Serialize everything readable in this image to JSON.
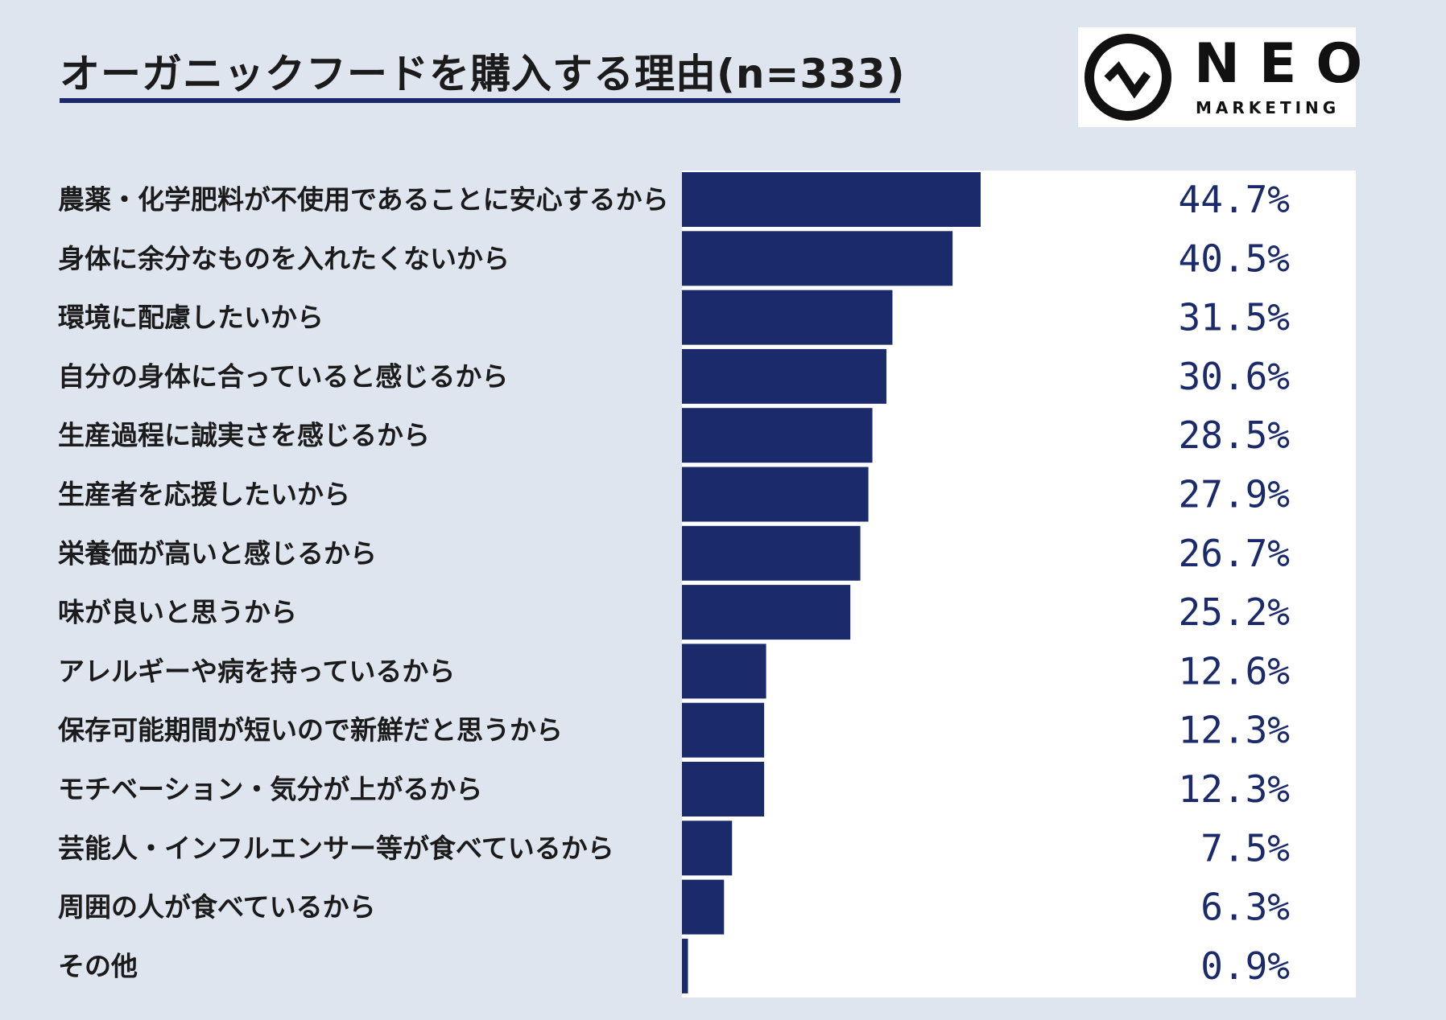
{
  "brand": {
    "name": "NEO",
    "sub": "MARKETING",
    "icon": "neo-circle-zigzag-icon"
  },
  "colors": {
    "background": "#dfe5ef",
    "bar": "#1b2a6b",
    "panel": "#ffffff",
    "value_text": "#1b2a6b"
  },
  "chart_data": {
    "type": "bar",
    "orientation": "horizontal",
    "title": "オーガニックフードを購入する理由(n=333)",
    "xlabel": "",
    "ylabel": "",
    "unit": "%",
    "xlim": [
      0,
      100
    ],
    "grid": false,
    "categories": [
      "農薬・化学肥料が不使用であることに安心するから",
      "身体に余分なものを入れたくないから",
      "環境に配慮したいから",
      "自分の身体に合っていると感じるから",
      "生産過程に誠実さを感じるから",
      "生産者を応援したいから",
      "栄養価が高いと感じるから",
      "味が良いと思うから",
      "アレルギーや病を持っているから",
      "保存可能期間が短いので新鮮だと思うから",
      "モチベーション・気分が上がるから",
      "芸能人・インフルエンサー等が食べているから",
      "周囲の人が食べているから",
      "その他"
    ],
    "values": [
      44.7,
      40.5,
      31.5,
      30.6,
      28.5,
      27.9,
      26.7,
      25.2,
      12.6,
      12.3,
      12.3,
      7.5,
      6.3,
      0.9
    ],
    "value_labels": [
      "44.7%",
      "40.5%",
      "31.5%",
      "30.6%",
      "28.5%",
      "27.9%",
      "26.7%",
      "25.2%",
      "12.6%",
      "12.3%",
      "12.3%",
      "7.5%",
      "6.3%",
      "0.9%"
    ]
  }
}
